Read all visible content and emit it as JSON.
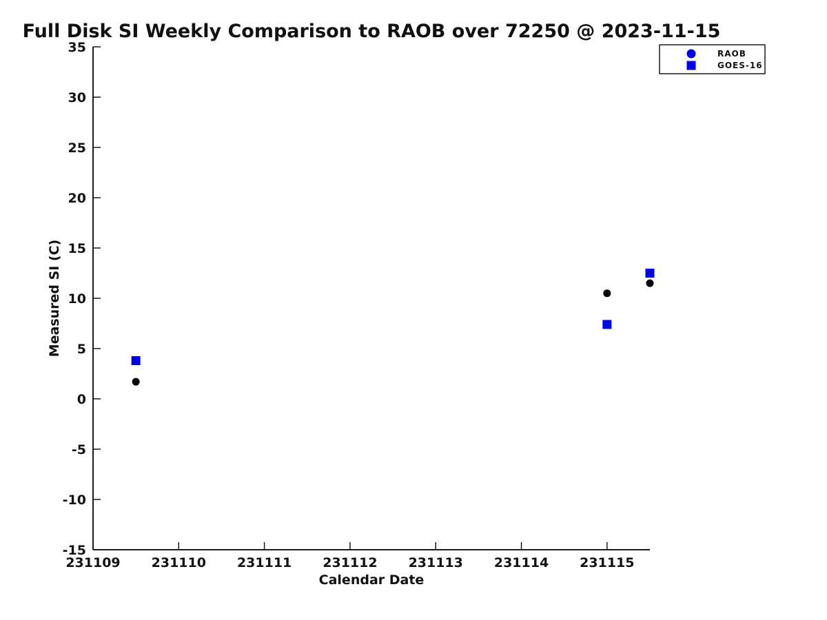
{
  "chart_data": {
    "type": "scatter",
    "title": "Full Disk SI Weekly Comparison to RAOB over 72250 @ 2023-11-15",
    "xlabel": "Calendar Date",
    "ylabel": "Measured SI (C)",
    "xlim": [
      231109,
      231115.5
    ],
    "ylim": [
      -15,
      35
    ],
    "xticks": [
      231109,
      231110,
      231111,
      231112,
      231113,
      231114,
      231115
    ],
    "yticks": [
      -15,
      -10,
      -5,
      0,
      5,
      10,
      15,
      20,
      25,
      30,
      35
    ],
    "grid": false,
    "colors": {
      "axis": "#1a1a1a",
      "text": "#111111",
      "blue": "#0000ee",
      "black": "#000000",
      "background": "#ffffff"
    },
    "legend": {
      "position": "top-right",
      "entries": [
        {
          "label": "RAOB",
          "marker": "circle",
          "marker_color": "#0000ee"
        },
        {
          "label": "GOES-16",
          "marker": "square",
          "marker_color": "#0000ee"
        }
      ]
    },
    "series": [
      {
        "name": "RAOB",
        "marker": "circle",
        "marker_color": "#000000",
        "points": [
          {
            "x": 231109.5,
            "y": 1.7
          },
          {
            "x": 231115.0,
            "y": 10.5
          },
          {
            "x": 231115.5,
            "y": 11.5
          }
        ]
      },
      {
        "name": "GOES-16",
        "marker": "square",
        "marker_color": "#0000ee",
        "points": [
          {
            "x": 231109.5,
            "y": 3.8
          },
          {
            "x": 231115.0,
            "y": 7.4
          },
          {
            "x": 231115.5,
            "y": 12.5
          }
        ]
      }
    ]
  }
}
